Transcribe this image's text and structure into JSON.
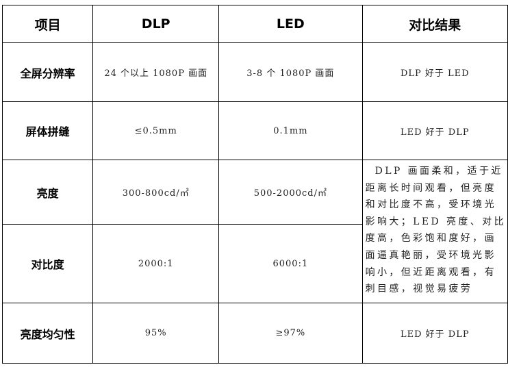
{
  "headers": [
    "项目",
    "DLP",
    "LED",
    "对比结果"
  ],
  "rows": [
    {
      "item": "全屏分辨率",
      "dlp": "24 个以上 1080P 画面",
      "led": "3-8 个 1080P 画面",
      "result": "DLP 好于 LED"
    },
    {
      "item": "屏体拼缝",
      "dlp": "≤0.5mm",
      "led": "0.1mm",
      "result": "LED 好于 DLP"
    },
    {
      "item": "亮度",
      "dlp": "300-800cd/㎡",
      "led": "500-2000cd/㎡"
    },
    {
      "item": "对比度",
      "dlp": "2000:1",
      "led": "6000:1"
    },
    {
      "item": "亮度均匀性",
      "dlp": "95%",
      "led": "≥97%",
      "result": "LED 好于 DLP"
    }
  ],
  "merged_result": {
    "lines": [
      "DLP 画面柔和，适于近",
      "距离长时间观看，但亮度",
      "和对比度不高，受环境光",
      "影响大；LED 亮度、对比",
      "度高，色彩饱和度好，画",
      "面逼真艳丽，受环境光影",
      "响小，但近距离观看，有",
      "刺目感，视觉易疲劳"
    ]
  }
}
